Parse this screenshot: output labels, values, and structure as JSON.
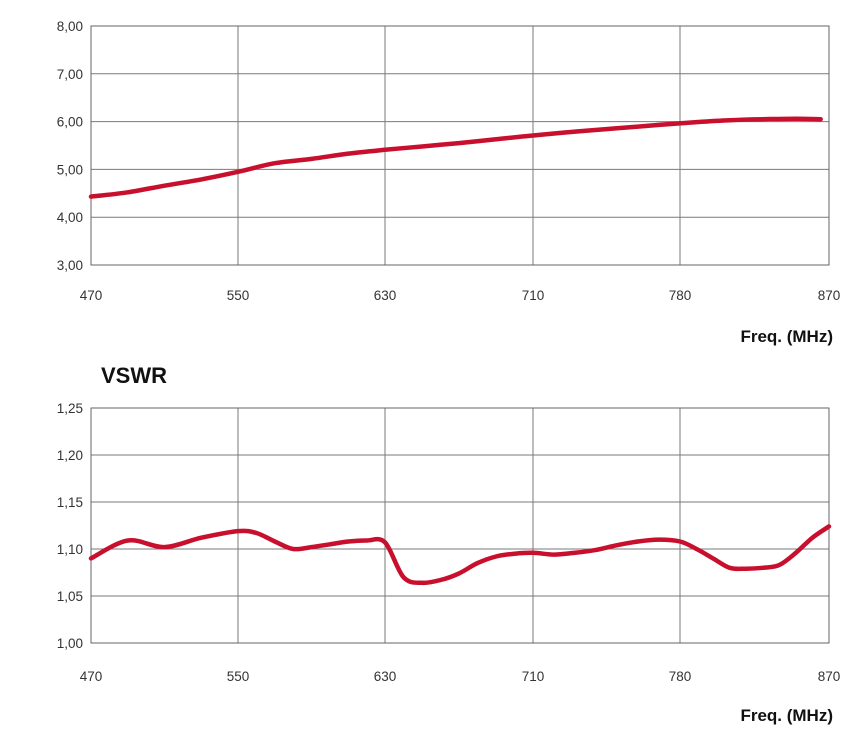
{
  "colors": {
    "line": "#c8102e",
    "grid": "#7a7a7a",
    "frame": "#666666"
  },
  "chart_data": [
    {
      "type": "line",
      "title": "",
      "xlabel": "Freq. (MHz)",
      "ylabel": "",
      "x_ticks": [
        "470",
        "550",
        "630",
        "710",
        "780",
        "870"
      ],
      "y_ticks": [
        "3,00",
        "4,00",
        "5,00",
        "6,00",
        "7,00",
        "8,00"
      ],
      "ylim": [
        3,
        8
      ],
      "grid": true,
      "series": [
        {
          "x": [
            470,
            490,
            510,
            530,
            550,
            570,
            590,
            610,
            630,
            650,
            670,
            690,
            710,
            730,
            750,
            770,
            790,
            810,
            830,
            850,
            865
          ],
          "y": [
            4.43,
            4.52,
            4.66,
            4.79,
            4.95,
            5.13,
            5.22,
            5.33,
            5.41,
            5.48,
            5.55,
            5.63,
            5.71,
            5.79,
            5.86,
            5.93,
            5.99,
            6.03,
            6.05,
            6.06,
            6.05
          ]
        }
      ]
    },
    {
      "type": "line",
      "title": "VSWR",
      "xlabel": "Freq. (MHz)",
      "ylabel": "",
      "x_ticks": [
        "470",
        "550",
        "630",
        "710",
        "780",
        "870"
      ],
      "y_ticks": [
        "1,00",
        "1,05",
        "1,10",
        "1,15",
        "1,20",
        "1,25"
      ],
      "ylim": [
        1.0,
        1.25
      ],
      "grid": true,
      "series": [
        {
          "x": [
            470,
            490,
            510,
            530,
            550,
            560,
            570,
            580,
            590,
            600,
            610,
            620,
            630,
            640,
            650,
            660,
            670,
            680,
            690,
            700,
            710,
            720,
            730,
            740,
            750,
            760,
            770,
            780,
            790,
            800,
            810,
            820,
            830,
            840,
            850,
            860,
            870
          ],
          "y": [
            1.09,
            1.109,
            1.102,
            1.112,
            1.119,
            1.117,
            1.108,
            1.1,
            1.102,
            1.105,
            1.108,
            1.109,
            1.107,
            1.07,
            1.064,
            1.067,
            1.074,
            1.085,
            1.092,
            1.095,
            1.096,
            1.094,
            1.096,
            1.099,
            1.104,
            1.108,
            1.11,
            1.108,
            1.1,
            1.09,
            1.08,
            1.079,
            1.08,
            1.083,
            1.096,
            1.112,
            1.124
          ]
        }
      ]
    }
  ]
}
